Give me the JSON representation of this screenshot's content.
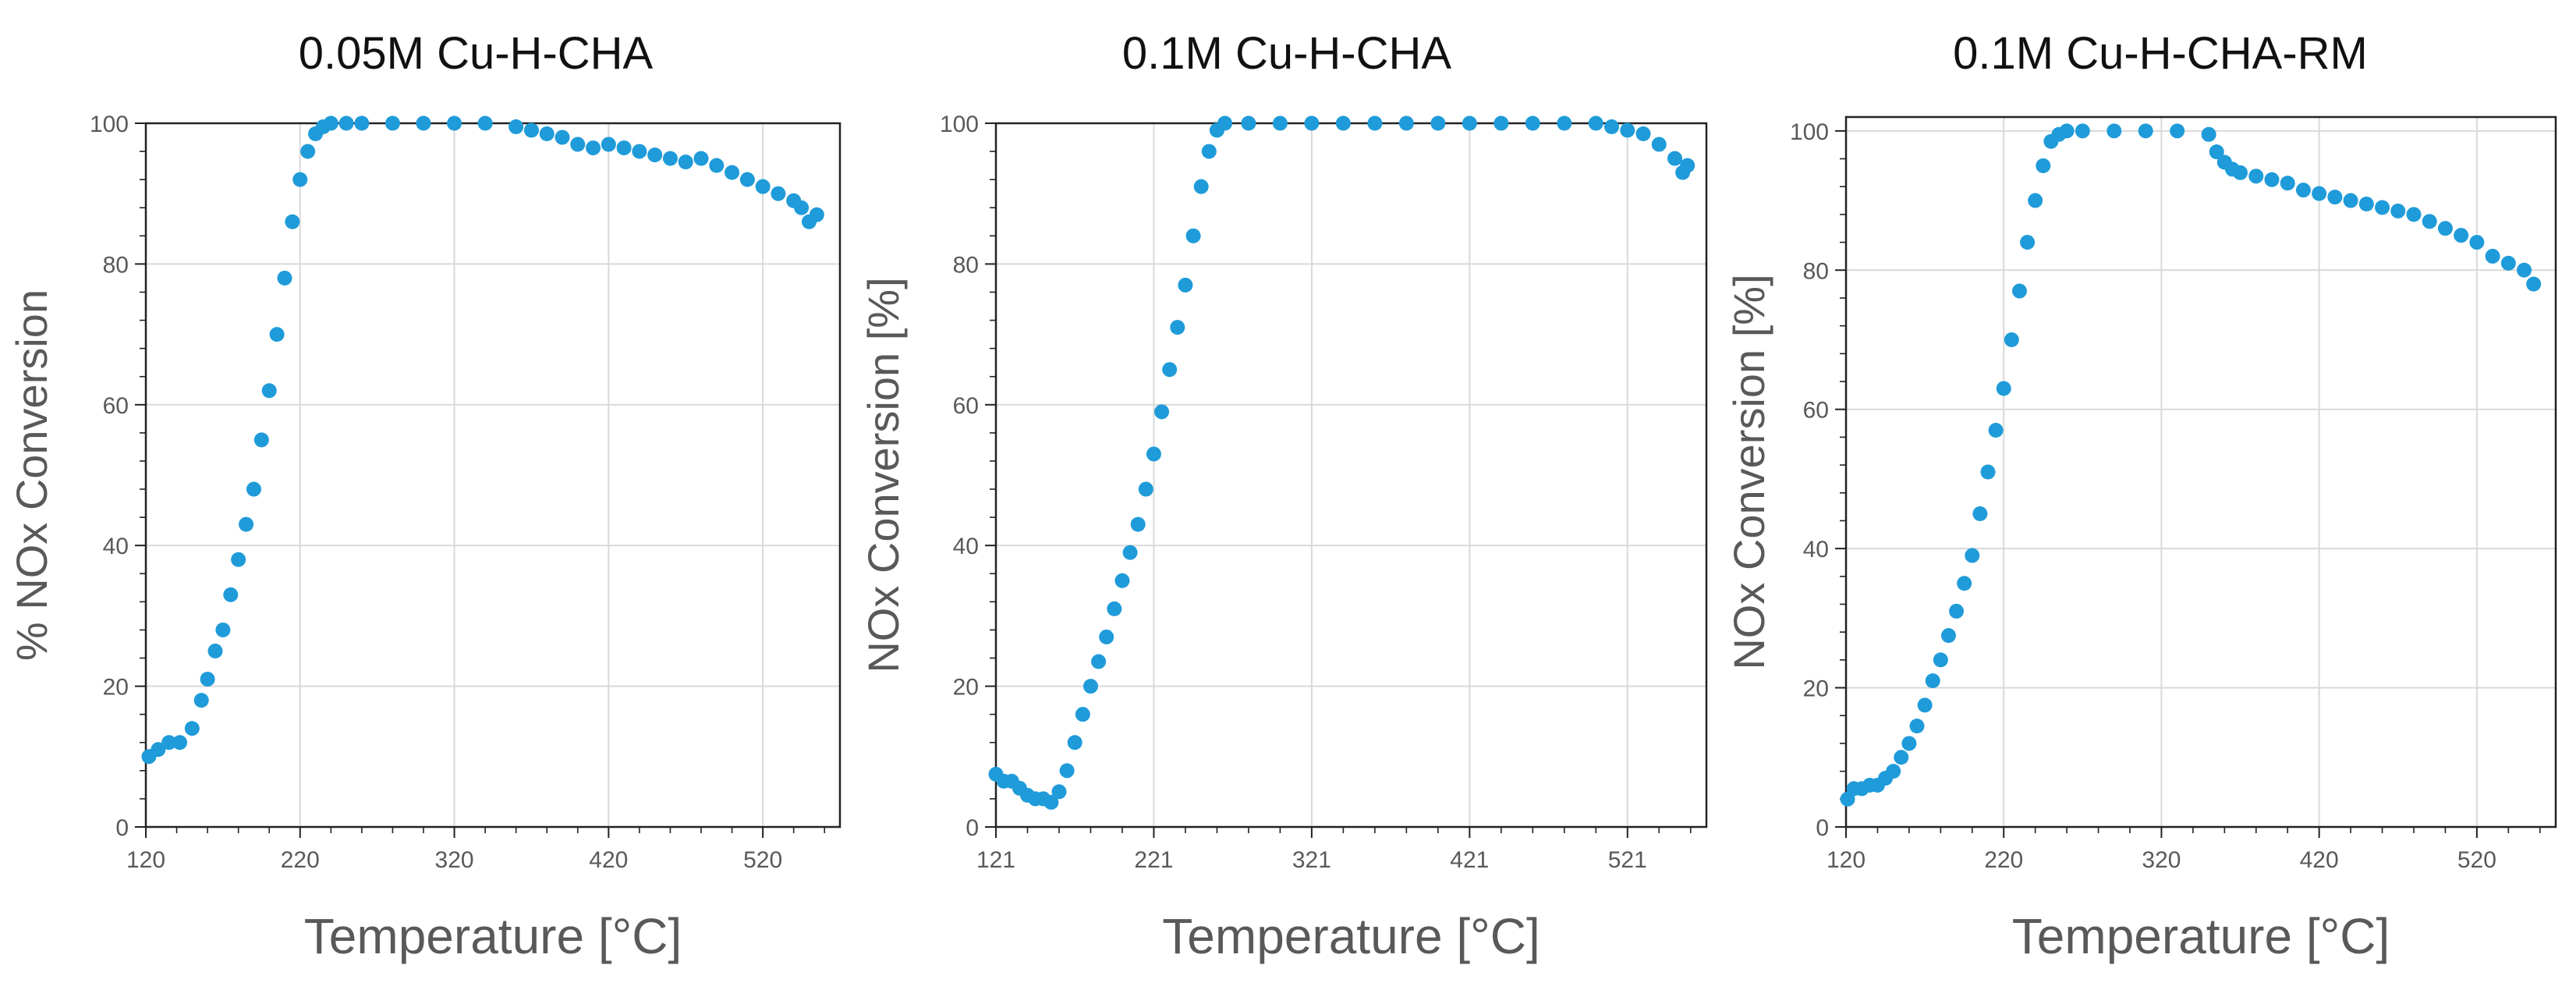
{
  "chart_data": [
    {
      "type": "scatter",
      "title": "0.05M Cu-H-CHA",
      "xlabel": "Temperature [°C]",
      "ylabel": "% NOx Conversion",
      "xlim": [
        120,
        570
      ],
      "ylim": [
        0,
        100
      ],
      "xticks": [
        120,
        220,
        320,
        420,
        520
      ],
      "yticks": [
        0,
        20,
        40,
        60,
        80,
        100
      ],
      "grid": true,
      "marker_color": "#1f9bd9",
      "series": [
        {
          "name": "0.05M Cu-H-CHA",
          "x": [
            122,
            128,
            135,
            142,
            150,
            156,
            160,
            165,
            170,
            175,
            180,
            185,
            190,
            195,
            200,
            205,
            210,
            215,
            220,
            225,
            230,
            235,
            240,
            250,
            260,
            280,
            300,
            320,
            340,
            360,
            370,
            380,
            390,
            400,
            410,
            420,
            430,
            440,
            450,
            460,
            470,
            480,
            490,
            500,
            510,
            520,
            530,
            540,
            545,
            550,
            555
          ],
          "y": [
            10,
            11,
            12,
            12,
            14,
            18,
            21,
            25,
            28,
            33,
            38,
            43,
            48,
            55,
            62,
            70,
            78,
            86,
            92,
            96,
            98.5,
            99.5,
            100,
            100,
            100,
            100,
            100,
            100,
            100,
            99.5,
            99,
            98.5,
            98,
            97,
            96.5,
            97,
            96.5,
            96,
            95.5,
            95,
            94.5,
            95,
            94,
            93,
            92,
            91,
            90,
            89,
            88,
            86,
            87
          ]
        }
      ]
    },
    {
      "type": "scatter",
      "title": "0.1M Cu-H-CHA",
      "xlabel": "Temperature [°C]",
      "ylabel": "NOx Conversion [%]",
      "xlim": [
        121,
        571
      ],
      "ylim": [
        0,
        100
      ],
      "xticks": [
        121,
        221,
        321,
        421,
        521
      ],
      "yticks": [
        0,
        20,
        40,
        60,
        80,
        100
      ],
      "grid": true,
      "marker_color": "#1f9bd9",
      "series": [
        {
          "name": "0.1M Cu-H-CHA",
          "x": [
            121,
            126,
            131,
            136,
            141,
            146,
            151,
            156,
            161,
            166,
            171,
            176,
            181,
            186,
            191,
            196,
            201,
            206,
            211,
            216,
            221,
            226,
            231,
            236,
            241,
            246,
            251,
            256,
            261,
            266,
            281,
            301,
            321,
            341,
            361,
            381,
            401,
            421,
            441,
            461,
            481,
            501,
            511,
            521,
            531,
            541,
            551,
            556,
            559
          ],
          "y": [
            7.5,
            6.5,
            6.5,
            5.5,
            4.5,
            4,
            4,
            3.5,
            5,
            8,
            12,
            16,
            20,
            23.5,
            27,
            31,
            35,
            39,
            43,
            48,
            53,
            59,
            65,
            71,
            77,
            84,
            91,
            96,
            99,
            100,
            100,
            100,
            100,
            100,
            100,
            100,
            100,
            100,
            100,
            100,
            100,
            100,
            99.5,
            99,
            98.5,
            97,
            95,
            93,
            94
          ]
        }
      ]
    },
    {
      "type": "scatter",
      "title": "0.1M Cu-H-CHA-RM",
      "xlabel": "Temperature [°C]",
      "ylabel": "NOx Conversion [%]",
      "xlim": [
        120,
        570
      ],
      "ylim": [
        0,
        102
      ],
      "xticks": [
        120,
        220,
        320,
        420,
        520
      ],
      "yticks": [
        0,
        20,
        40,
        60,
        80,
        100
      ],
      "grid": true,
      "marker_color": "#1f9bd9",
      "series": [
        {
          "name": "0.1M Cu-H-CHA-RM",
          "x": [
            121,
            125,
            130,
            135,
            140,
            145,
            150,
            155,
            160,
            165,
            170,
            175,
            180,
            185,
            190,
            195,
            200,
            205,
            210,
            215,
            220,
            225,
            230,
            235,
            240,
            245,
            250,
            255,
            260,
            270,
            290,
            310,
            330,
            350,
            355,
            360,
            365,
            370,
            380,
            390,
            400,
            410,
            420,
            430,
            440,
            450,
            460,
            470,
            480,
            490,
            500,
            510,
            520,
            530,
            540,
            550,
            556
          ],
          "y": [
            4,
            5.5,
            5.5,
            6,
            6,
            7,
            8,
            10,
            12,
            14.5,
            17.5,
            21,
            24,
            27.5,
            31,
            35,
            39,
            45,
            51,
            57,
            63,
            70,
            77,
            84,
            90,
            95,
            98.5,
            99.5,
            100,
            100,
            100,
            100,
            100,
            99.5,
            97,
            95.5,
            94.5,
            94,
            93.5,
            93,
            92.5,
            91.5,
            91,
            90.5,
            90,
            89.5,
            89,
            88.5,
            88,
            87,
            86,
            85,
            84,
            82,
            81,
            80,
            78
          ]
        }
      ]
    }
  ]
}
